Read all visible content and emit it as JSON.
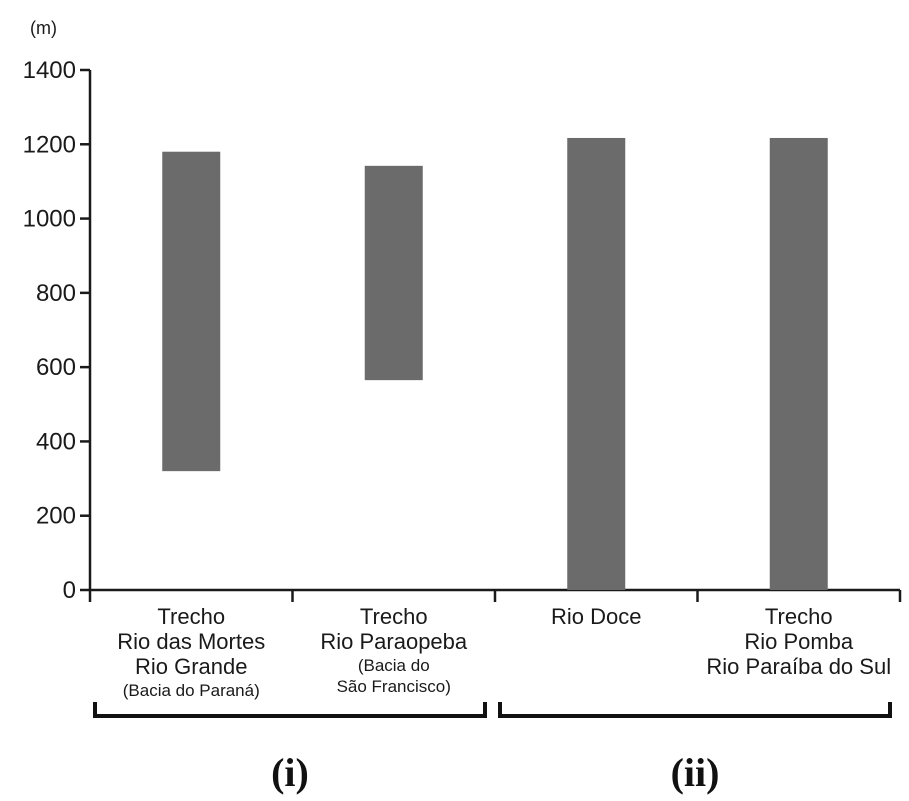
{
  "chart_data": {
    "type": "bar",
    "unit_label": "(m)",
    "ylim": [
      0,
      1400
    ],
    "yticks": [
      0,
      200,
      400,
      600,
      800,
      1000,
      1200,
      1400
    ],
    "bar_color": "#6b6b6b",
    "categories": [
      {
        "lines": [
          "Trecho",
          "Rio das Mortes",
          "Rio Grande"
        ],
        "small_lines": [
          "(Bacia do Paraná)"
        ]
      },
      {
        "lines": [
          "Trecho",
          "Rio Paraopeba"
        ],
        "small_lines": [
          "(Bacia do",
          "São Francisco)"
        ]
      },
      {
        "lines": [
          "Rio Doce"
        ],
        "small_lines": []
      },
      {
        "lines": [
          "Trecho",
          "Rio Pomba",
          "Rio Paraíba do Sul"
        ],
        "small_lines": []
      }
    ],
    "ranges": [
      {
        "low": 320,
        "high": 1180
      },
      {
        "low": 565,
        "high": 1142
      },
      {
        "low": 0,
        "high": 1217
      },
      {
        "low": 0,
        "high": 1217
      }
    ],
    "groups": [
      {
        "label": "(i)",
        "categories": [
          0,
          1
        ]
      },
      {
        "label": "(ii)",
        "categories": [
          2,
          3
        ]
      }
    ]
  }
}
